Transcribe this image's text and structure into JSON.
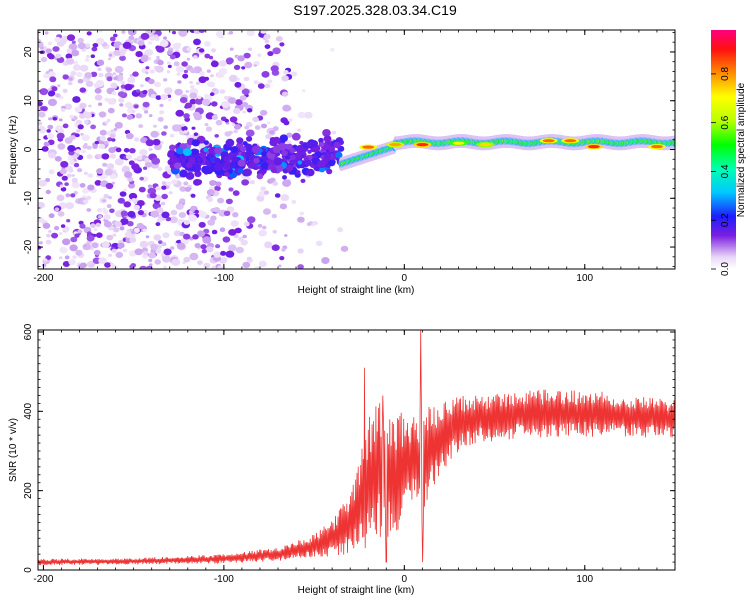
{
  "title": "S197.2025.328.03.34.C19",
  "chart_data": [
    {
      "type": "heatmap",
      "xlabel": "Height of straight line (km)",
      "ylabel": "Frequency (Hz)",
      "xlim": [
        -203,
        150
      ],
      "ylim": [
        -24.5,
        24.5
      ],
      "x_ticks": [
        -200,
        -100,
        0,
        100
      ],
      "x_tick_labels": [
        "-200",
        "-100",
        "0",
        "100"
      ],
      "y_ticks": [
        -20,
        -10,
        0,
        10,
        20
      ],
      "y_tick_labels": [
        "-20",
        "-10",
        "0",
        "10",
        "20"
      ],
      "colorbar": {
        "label": "Normalized spectral amplitude",
        "range": [
          0,
          0.98
        ],
        "ticks": [
          0.0,
          0.2,
          0.4,
          0.6,
          0.8
        ],
        "tick_labels": [
          "0.0",
          "0.2",
          "0.4",
          "0.6",
          "0.8"
        ]
      },
      "description_regions": {
        "noise_region_x": [
          -203,
          -40
        ],
        "transition_x": [
          -40,
          0
        ],
        "signal_line_x": [
          0,
          150
        ],
        "signal_line_freq_hz": 1.5
      },
      "signal_peaks": [
        {
          "x": -20,
          "y": 0.5,
          "amp": 0.85
        },
        {
          "x": -5,
          "y": 1.0,
          "amp": 0.8
        },
        {
          "x": 10,
          "y": 1.0,
          "amp": 0.9
        },
        {
          "x": 30,
          "y": 1.3,
          "amp": 0.7
        },
        {
          "x": 45,
          "y": 1.0,
          "amp": 0.75
        },
        {
          "x": 80,
          "y": 1.8,
          "amp": 0.85
        },
        {
          "x": 92,
          "y": 1.8,
          "amp": 0.85
        },
        {
          "x": 105,
          "y": 0.6,
          "amp": 0.9
        },
        {
          "x": 140,
          "y": 0.6,
          "amp": 0.85
        }
      ]
    },
    {
      "type": "line",
      "xlabel": "Height of straight line (km)",
      "ylabel": "SNR (10 * v/v)",
      "xlim": [
        -203,
        150
      ],
      "ylim": [
        0,
        605
      ],
      "x_ticks": [
        -200,
        -100,
        0,
        100
      ],
      "x_tick_labels": [
        "-200",
        "-100",
        "0",
        "100"
      ],
      "y_ticks": [
        0,
        200,
        400,
        600
      ],
      "y_tick_labels": [
        "0",
        "200",
        "400",
        "600"
      ],
      "line_color": "#ee3333",
      "envelope": {
        "x": [
          -203,
          -150,
          -100,
          -70,
          -50,
          -40,
          -30,
          -25,
          -20,
          -15,
          -10,
          -5,
          0,
          5,
          10,
          15,
          20,
          25,
          30,
          40,
          50,
          60,
          80,
          100,
          120,
          150
        ],
        "mean": [
          20,
          22,
          28,
          40,
          60,
          80,
          120,
          160,
          220,
          260,
          230,
          240,
          260,
          280,
          260,
          300,
          330,
          350,
          370,
          380,
          385,
          390,
          395,
          395,
          390,
          380
        ],
        "amplitude": [
          8,
          8,
          12,
          18,
          30,
          45,
          80,
          120,
          160,
          180,
          160,
          160,
          140,
          120,
          160,
          110,
          90,
          80,
          70,
          60,
          60,
          60,
          60,
          60,
          55,
          50
        ]
      },
      "spikes": [
        {
          "x": -22,
          "y": 510
        },
        {
          "x": -12,
          "y": 440
        },
        {
          "x": 9,
          "y": 605
        },
        {
          "x": 10,
          "y": 20
        },
        {
          "x": -10,
          "y": 20
        }
      ]
    }
  ]
}
